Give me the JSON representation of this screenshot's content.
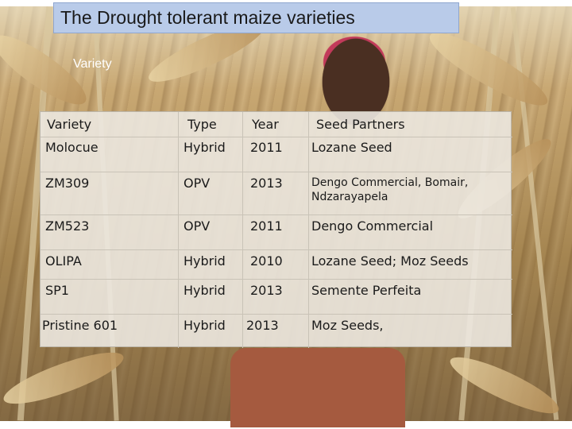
{
  "slide": {
    "title": "The  Drought tolerant maize varieties",
    "ghost_label": "Variety"
  },
  "table": {
    "headers": [
      "Variety",
      "Type",
      "Year",
      "Seed Partners"
    ],
    "rows": [
      {
        "variety": "Molocue",
        "type": "Hybrid",
        "year": "2011",
        "partners": "Lozane Seed"
      },
      {
        "variety": "ZM309",
        "type": "OPV",
        "year": "2013",
        "partners": "Dengo Commercial, Bomair, Ndzarayapela"
      },
      {
        "variety": "ZM523",
        "type": "OPV",
        "year": "2011",
        "partners": "Dengo Commercial"
      },
      {
        "variety": "OLIPA",
        "type": "Hybrid",
        "year": "2010",
        "partners": "Lozane Seed; Moz Seeds"
      },
      {
        "variety": "SP1",
        "type": "Hybrid",
        "year": "2013",
        "partners": "Semente Perfeita"
      },
      {
        "variety": "Pristine 601",
        "type": "Hybrid",
        "year": "2013",
        "partners": "Moz Seeds,"
      }
    ]
  }
}
